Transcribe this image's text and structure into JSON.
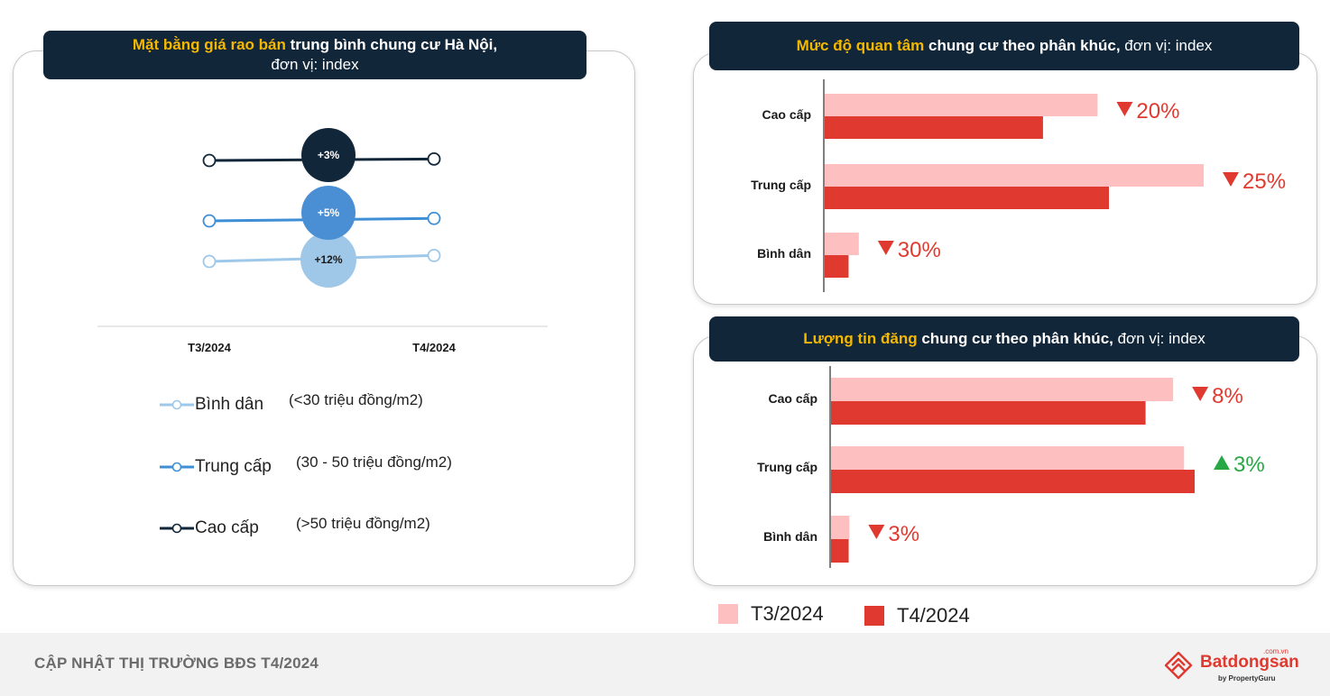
{
  "colors": {
    "header_bg": "#12263a",
    "highlight": "#f5b800",
    "t3": "#fdbfbf",
    "t4": "#e03a30",
    "down": "#e03a30",
    "up": "#27a844",
    "binh_dan_line": "#9ec8ea",
    "trung_cap_line": "#3f8fd6",
    "cao_cap_line": "#12263a"
  },
  "left_panel": {
    "title_highlight": "Mặt bằng giá rao bán",
    "title_rest": " trung bình chung cư Hà Nội,",
    "title_line2": "đơn vị: index",
    "legend": [
      {
        "icon": "line-marker-light-blue-icon",
        "label": "Bình dân",
        "range": "(<30 triệu đồng/m2)"
      },
      {
        "icon": "line-marker-blue-icon",
        "label": "Trung cấp",
        "range": "(30 - 50 triệu đồng/m2)"
      },
      {
        "icon": "line-marker-navy-icon",
        "label": "Cao cấp",
        "range": "(>50 triệu đồng/m2)"
      }
    ]
  },
  "top_right_panel": {
    "title_highlight": "Mức độ quan tâm",
    "title_bold": " chung cư theo phân khúc,",
    "title_rest": " đơn vị: index"
  },
  "bottom_right_panel": {
    "title_highlight": "Lượng tin đăng",
    "title_bold": " chung cư theo phân khúc,",
    "title_rest": " đơn vị: index"
  },
  "bottom_legend": [
    {
      "label": "T3/2024",
      "color": "#fdbfbf"
    },
    {
      "label": "T4/2024",
      "color": "#e03a30"
    }
  ],
  "footer": {
    "text": "CẬP NHẬT THỊ TRƯỜNG BĐS T4/2024",
    "logo_text": "Batdongsan",
    "logo_domain": ".com.vn",
    "logo_sub": "by PropertyGuru"
  },
  "chart_data": [
    {
      "type": "line",
      "x": [
        "T3/2024",
        "T4/2024"
      ],
      "series": [
        {
          "name": "Cao cấp",
          "values": [
            100,
            103
          ],
          "change_label": "+3%"
        },
        {
          "name": "Trung cấp",
          "values": [
            100,
            105
          ],
          "change_label": "+5%"
        },
        {
          "name": "Bình dân",
          "values": [
            100,
            112
          ],
          "change_label": "+12%"
        }
      ]
    },
    {
      "type": "bar",
      "orientation": "horizontal",
      "categories": [
        "Cao cấp",
        "Trung cấp",
        "Bình dân"
      ],
      "series": [
        {
          "name": "T3/2024",
          "values": [
            72,
            100,
            9
          ]
        },
        {
          "name": "T4/2024",
          "values": [
            57.6,
            75,
            6.3
          ]
        }
      ],
      "change_labels": [
        {
          "direction": "down",
          "text": "20%"
        },
        {
          "direction": "down",
          "text": "25%"
        },
        {
          "direction": "down",
          "text": "30%"
        }
      ],
      "xlim": [
        0,
        100
      ]
    },
    {
      "type": "bar",
      "orientation": "horizontal",
      "categories": [
        "Cao cấp",
        "Trung cấp",
        "Bình dân"
      ],
      "series": [
        {
          "name": "T3/2024",
          "values": [
            96.9,
            100,
            5.2
          ]
        },
        {
          "name": "T4/2024",
          "values": [
            89.1,
            103,
            5.0
          ]
        }
      ],
      "change_labels": [
        {
          "direction": "down",
          "text": "8%"
        },
        {
          "direction": "up",
          "text": "3%"
        },
        {
          "direction": "down",
          "text": "3%"
        }
      ],
      "xlim": [
        0,
        103
      ]
    }
  ]
}
